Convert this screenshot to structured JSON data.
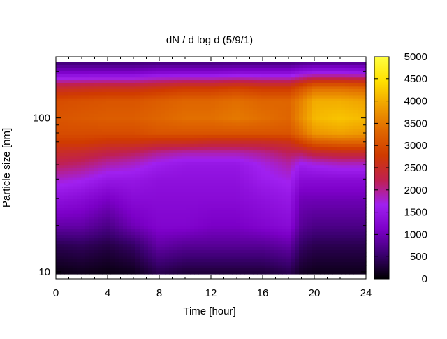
{
  "chart_data": {
    "type": "heatmap",
    "title": "dN / d log d (5/9/1)",
    "xlabel": "Time [hour]",
    "ylabel": "Particle size [nm]",
    "xlim": [
      0,
      24
    ],
    "xticks": [
      0,
      4,
      8,
      12,
      16,
      20,
      24
    ],
    "x_tick_labels": [
      "0",
      "4",
      "8",
      "12",
      "16",
      "20",
      "24"
    ],
    "ylim": [
      9,
      250
    ],
    "yscale": "log",
    "yticks": [
      10,
      100
    ],
    "y_tick_labels": [
      "10",
      "100"
    ],
    "colorbar": {
      "range": [
        0,
        5000
      ],
      "ticks": [
        0,
        500,
        1000,
        1500,
        2000,
        2500,
        3000,
        3500,
        4000,
        4500,
        5000
      ],
      "tick_labels": [
        "0",
        "500",
        "1000",
        "1500",
        "2000",
        "2500",
        "3000",
        "3500",
        "4000",
        "4500",
        "5000"
      ],
      "palette": [
        "#000000",
        "#3b0070",
        "#7c00c8",
        "#a020f0",
        "#c02050",
        "#d03a00",
        "#e06800",
        "#f0a000",
        "#ffe000",
        "#ffff40"
      ]
    },
    "time_hours": [
      0,
      2,
      4,
      6,
      8,
      10,
      12,
      14,
      16,
      18,
      19,
      20,
      22,
      24
    ],
    "size_bins_nm": [
      10,
      15,
      20,
      30,
      40,
      50,
      60,
      70,
      80,
      100,
      130,
      160,
      200,
      250
    ],
    "values": [
      [
        100,
        400,
        900,
        1400,
        1800,
        2200,
        2500,
        2800,
        3000,
        3100,
        3000,
        2400,
        1100,
        300
      ],
      [
        150,
        450,
        900,
        1300,
        1700,
        2100,
        2450,
        2800,
        3000,
        3150,
        3050,
        2450,
        1100,
        300
      ],
      [
        100,
        350,
        700,
        1100,
        1500,
        1900,
        2300,
        2700,
        3000,
        3200,
        3100,
        2500,
        1100,
        300
      ],
      [
        150,
        500,
        1000,
        1300,
        1500,
        1800,
        2200,
        2700,
        3000,
        3200,
        3100,
        2500,
        1100,
        300
      ],
      [
        400,
        900,
        1200,
        1300,
        1400,
        1600,
        2000,
        2600,
        3100,
        3300,
        3200,
        2600,
        1200,
        300
      ],
      [
        300,
        800,
        1200,
        1300,
        1400,
        1500,
        1900,
        2600,
        3100,
        3400,
        3300,
        2700,
        1200,
        300
      ],
      [
        300,
        800,
        1100,
        1300,
        1400,
        1500,
        1900,
        2500,
        3100,
        3400,
        3300,
        2700,
        1200,
        300
      ],
      [
        300,
        800,
        1100,
        1300,
        1400,
        1500,
        1900,
        2500,
        3100,
        3500,
        3400,
        2800,
        1250,
        300
      ],
      [
        300,
        800,
        1200,
        1400,
        1600,
        1700,
        2000,
        2500,
        3100,
        3400,
        3300,
        2700,
        1250,
        300
      ],
      [
        400,
        900,
        1300,
        1500,
        1700,
        1900,
        2200,
        2600,
        3100,
        3300,
        3300,
        2700,
        1250,
        300
      ],
      [
        200,
        500,
        800,
        1000,
        1300,
        1600,
        2200,
        2900,
        3400,
        3700,
        3600,
        3000,
        1400,
        300
      ],
      [
        150,
        400,
        700,
        1000,
        1300,
        1700,
        2400,
        3200,
        3800,
        4100,
        4000,
        3300,
        1500,
        300
      ],
      [
        150,
        400,
        700,
        1000,
        1300,
        1800,
        2500,
        3300,
        3900,
        4200,
        4000,
        3300,
        1500,
        300
      ],
      [
        150,
        400,
        700,
        1000,
        1300,
        1800,
        2500,
        3300,
        3800,
        4100,
        3900,
        3200,
        1450,
        300
      ]
    ]
  }
}
